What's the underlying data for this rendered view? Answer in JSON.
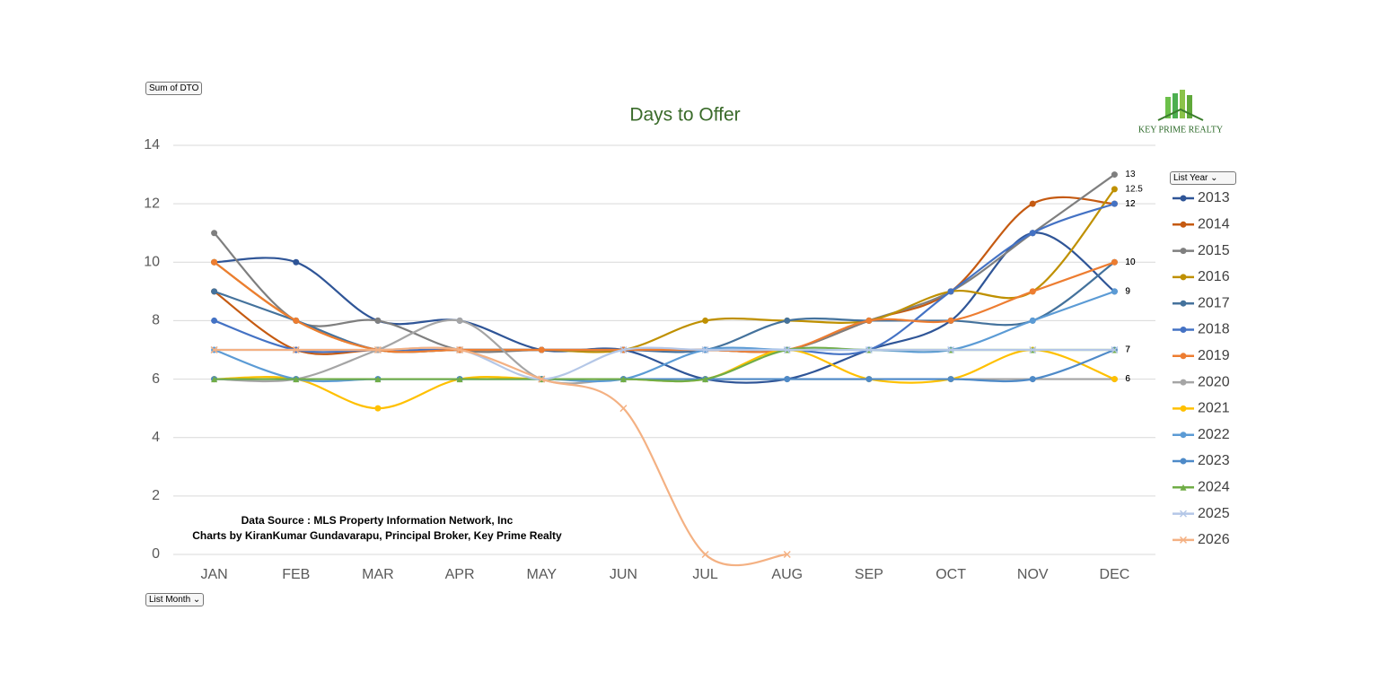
{
  "controls": {
    "value_field": "Sum of DTO",
    "legend_field": "List Year",
    "axis_field": "List Month"
  },
  "logo": {
    "name": "KEY PRIME REALTY"
  },
  "chart_data": {
    "type": "line",
    "title": "Days to Offer",
    "categories": [
      "JAN",
      "FEB",
      "MAR",
      "APR",
      "MAY",
      "JUN",
      "JUL",
      "AUG",
      "SEP",
      "OCT",
      "NOV",
      "DEC"
    ],
    "ylim": [
      0,
      14
    ],
    "yticks": [
      0,
      2,
      4,
      6,
      8,
      10,
      12,
      14
    ],
    "grid": true,
    "legend": "right",
    "annotations": [
      "Data Source : MLS Property Information Network, Inc",
      "Charts by KiranKumar Gundavarapu, Principal Broker, Key Prime Realty"
    ],
    "series": [
      {
        "name": "2013",
        "color": "#2f5597",
        "marker": "circle",
        "values": [
          10,
          10,
          8,
          8,
          7,
          7,
          6,
          6,
          7,
          8,
          11,
          9
        ]
      },
      {
        "name": "2014",
        "color": "#c55a11",
        "marker": "circle",
        "values": [
          9,
          7,
          7,
          7,
          7,
          7,
          7,
          7,
          8,
          9,
          12,
          12
        ]
      },
      {
        "name": "2015",
        "color": "#7f7f7f",
        "marker": "circle",
        "values": [
          11,
          8,
          8,
          7,
          7,
          7,
          7,
          7,
          8,
          9,
          11,
          13
        ]
      },
      {
        "name": "2016",
        "color": "#bf9000",
        "marker": "circle",
        "values": [
          10,
          8,
          7,
          7,
          7,
          7,
          8,
          8,
          8,
          9,
          9,
          12.5
        ]
      },
      {
        "name": "2017",
        "color": "#44729c",
        "marker": "circle",
        "values": [
          9,
          8,
          7,
          7,
          7,
          7,
          7,
          8,
          8,
          8,
          8,
          10
        ]
      },
      {
        "name": "2018",
        "color": "#4472c4",
        "marker": "circle",
        "values": [
          8,
          7,
          7,
          7,
          7,
          7,
          7,
          7,
          7,
          9,
          11,
          12
        ]
      },
      {
        "name": "2019",
        "color": "#ed7d31",
        "marker": "circle",
        "values": [
          10,
          8,
          7,
          7,
          7,
          7,
          7,
          7,
          8,
          8,
          9,
          10
        ]
      },
      {
        "name": "2020",
        "color": "#a5a5a5",
        "marker": "circle",
        "values": [
          6,
          6,
          7,
          8,
          6,
          6,
          6,
          6,
          6,
          6,
          6,
          6
        ]
      },
      {
        "name": "2021",
        "color": "#ffc000",
        "marker": "circle",
        "values": [
          6,
          6,
          5,
          6,
          6,
          6,
          6,
          7,
          6,
          6,
          7,
          6
        ]
      },
      {
        "name": "2022",
        "color": "#5b9bd5",
        "marker": "circle",
        "values": [
          7,
          6,
          6,
          6,
          6,
          6,
          7,
          7,
          7,
          7,
          8,
          9
        ]
      },
      {
        "name": "2023",
        "color": "#4e8ac8",
        "marker": "circle",
        "values": [
          6,
          6,
          6,
          6,
          6,
          6,
          6,
          6,
          6,
          6,
          6,
          7
        ]
      },
      {
        "name": "2024",
        "color": "#70ad47",
        "marker": "triangle",
        "values": [
          6,
          6,
          6,
          6,
          6,
          6,
          6,
          7,
          7,
          7,
          7,
          7
        ]
      },
      {
        "name": "2025",
        "color": "#b4c7e7",
        "marker": "x",
        "values": [
          7,
          7,
          7,
          7,
          6,
          7,
          7,
          7,
          7,
          7,
          7,
          7
        ]
      },
      {
        "name": "2026",
        "color": "#f4b183",
        "marker": "x",
        "values": [
          7,
          7,
          7,
          7,
          6,
          5,
          0,
          0,
          null,
          null,
          null,
          null
        ]
      }
    ]
  }
}
